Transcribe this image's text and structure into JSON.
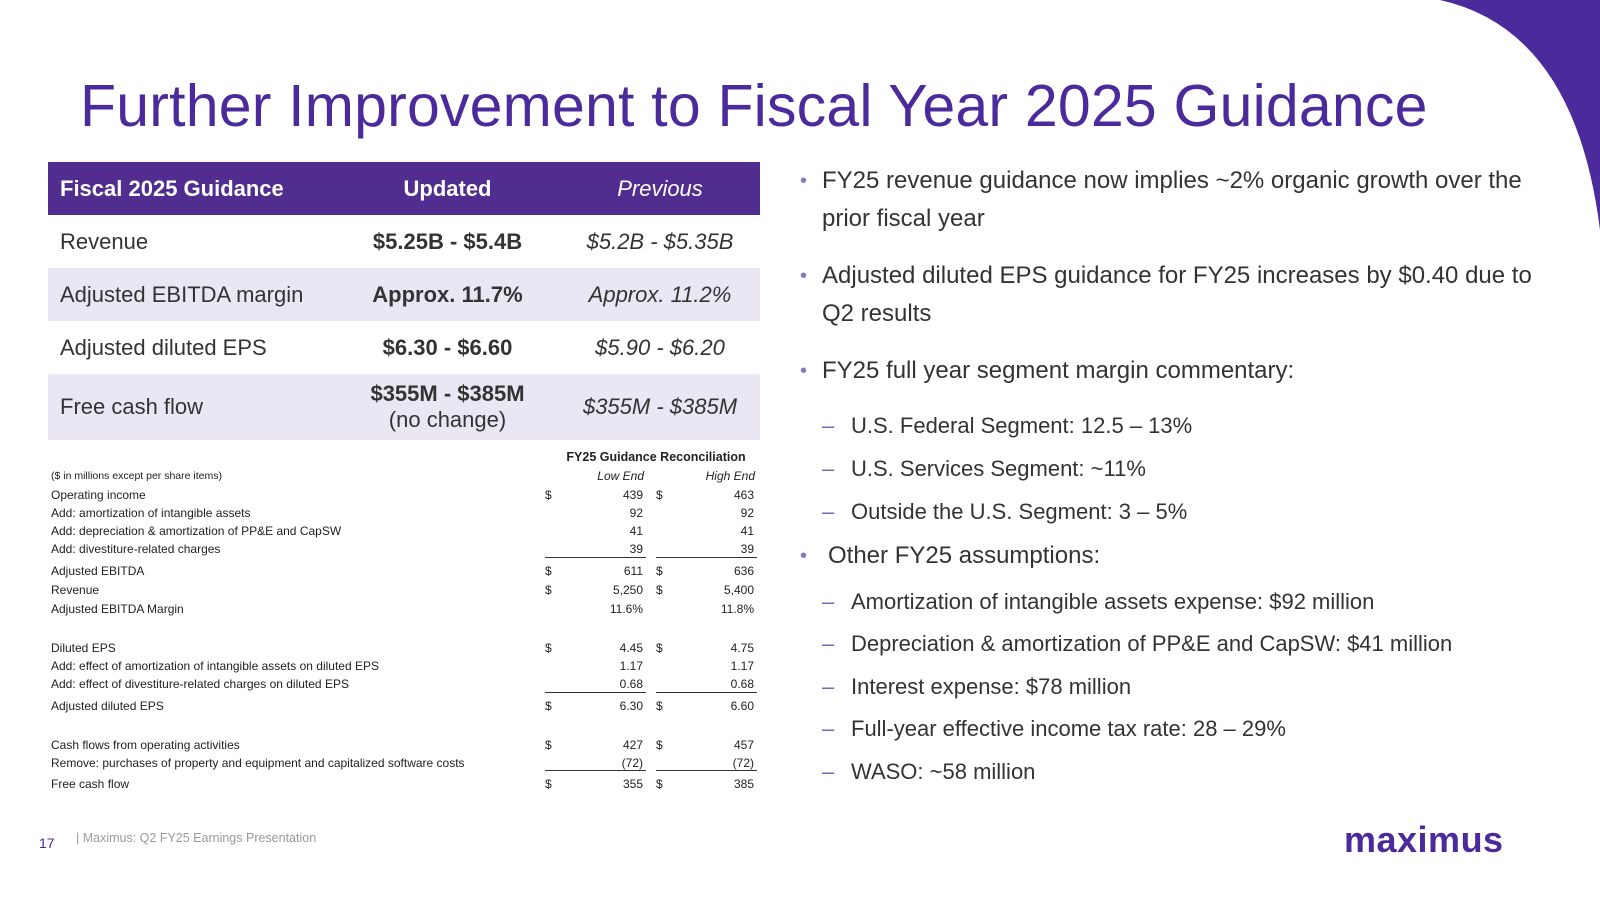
{
  "title": "Further Improvement to Fiscal Year 2025 Guidance",
  "guidance": {
    "headers": [
      "Fiscal 2025 Guidance",
      "Updated",
      "Previous"
    ],
    "rows": [
      {
        "label": "Revenue",
        "updated": "$5.25B - $5.4B",
        "updated_note": "",
        "previous": "$5.2B - $5.35B"
      },
      {
        "label": "Adjusted EBITDA margin",
        "updated": "Approx. 11.7%",
        "updated_note": "",
        "previous": "Approx. 11.2%"
      },
      {
        "label": "Adjusted diluted EPS",
        "updated": "$6.30 - $6.60",
        "updated_note": "",
        "previous": "$5.90 - $6.20"
      },
      {
        "label": "Free cash flow",
        "updated": "$355M - $385M",
        "updated_note": "(no change)",
        "previous": "$355M - $385M"
      }
    ]
  },
  "reconciliation": {
    "title": "FY25 Guidance Reconciliation",
    "units_note": "($ in millions except per share items)",
    "col_low": "Low End",
    "col_high": "High End",
    "rows": [
      {
        "label": "Operating income",
        "low": "439",
        "high": "463",
        "currency": "$"
      },
      {
        "label": "Add: amortization of intangible assets",
        "low": "92",
        "high": "92",
        "currency": ""
      },
      {
        "label": "Add: depreciation & amortization of PP&E and CapSW",
        "low": "41",
        "high": "41",
        "currency": ""
      },
      {
        "label": "Add: divestiture-related charges",
        "low": "39",
        "high": "39",
        "currency": ""
      },
      {
        "label": "Adjusted EBITDA",
        "low": "611",
        "high": "636",
        "currency": "$"
      },
      {
        "label": "Revenue",
        "low": "5,250",
        "high": "5,400",
        "currency": "$"
      },
      {
        "label": "Adjusted EBITDA Margin",
        "low": "11.6%",
        "high": "11.8%",
        "currency": ""
      },
      {
        "label": "Diluted EPS",
        "low": "4.45",
        "high": "4.75",
        "currency": "$"
      },
      {
        "label": "Add: effect of amortization of intangible assets on diluted EPS",
        "low": "1.17",
        "high": "1.17",
        "currency": ""
      },
      {
        "label": "Add: effect of divestiture-related charges on diluted EPS",
        "low": "0.68",
        "high": "0.68",
        "currency": ""
      },
      {
        "label": "Adjusted diluted EPS",
        "low": "6.30",
        "high": "6.60",
        "currency": "$"
      },
      {
        "label": "Cash flows from operating activities",
        "low": "427",
        "high": "457",
        "currency": "$"
      },
      {
        "label": "Remove: purchases of property and equipment and capitalized software costs",
        "low": "(72)",
        "high": "(72)",
        "currency": ""
      },
      {
        "label": "Free cash flow",
        "low": "355",
        "high": "385",
        "currency": "$"
      }
    ]
  },
  "bullets": {
    "b1": "FY25 revenue guidance now implies ~2% organic growth over the prior fiscal year",
    "b2": "Adjusted diluted EPS guidance for FY25 increases by $0.40 due to Q2 results",
    "b3": "FY25 full year segment margin commentary:",
    "b3_subs": [
      "U.S. Federal Segment: 12.5 – 13%",
      "U.S. Services Segment: ~11%",
      "Outside the U.S. Segment: 3 – 5%"
    ],
    "b4": "Other FY25 assumptions:",
    "b4_subs": [
      "Amortization of intangible assets expense: $92 million",
      "Depreciation & amortization of PP&E and CapSW: $41 million",
      "Interest expense: $78 million",
      "Full-year effective income tax rate: 28 – 29%",
      "WASO: ~58 million"
    ]
  },
  "footer": {
    "page_number": "17",
    "text": "| Maximus: Q2 FY25 Earnings Presentation",
    "logo": "maximus"
  },
  "colors": {
    "brand_purple": "#4b2a9c",
    "header_purple": "#512d8f",
    "row_shade": "#ebe6f3"
  }
}
